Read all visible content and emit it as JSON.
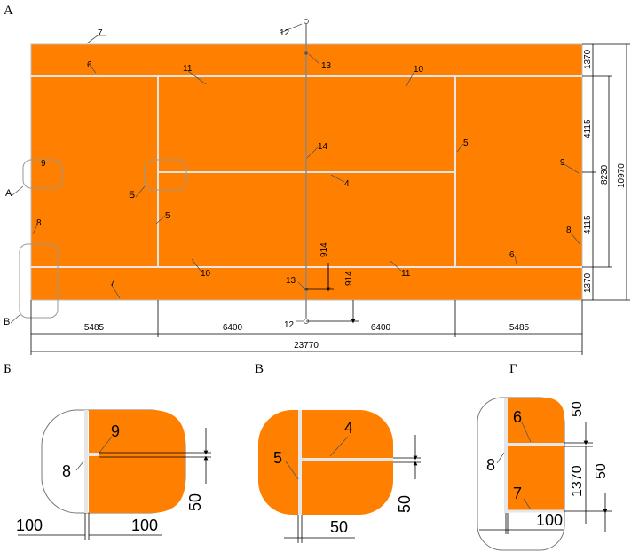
{
  "colors": {
    "court": "#ff8000",
    "lines": "#e6e6e6",
    "background": "#ffffff"
  },
  "main": {
    "view_label": "А",
    "dims": {
      "top_width": "23770",
      "seg_outer_left": "5485",
      "seg_inner_left": "6400",
      "seg_inner_right": "6400",
      "seg_outer_right": "5485",
      "total_height": "10970",
      "inner_height": "8230",
      "half_upper": "4115",
      "half_lower": "4115",
      "alley_top": "1370",
      "alley_bottom": "1370",
      "post_a": "914",
      "post_b": "914"
    },
    "labels": {
      "n4": "4",
      "n5a": "5",
      "n5b": "5",
      "n6a": "6",
      "n6b": "6",
      "n7a": "7",
      "n7b": "7",
      "n8a": "8",
      "n8b": "8",
      "n9a": "9",
      "n9b": "9",
      "n10a": "10",
      "n10b": "10",
      "n11a": "11",
      "n11b": "11",
      "n12a": "12",
      "n12b": "12",
      "n13a": "13",
      "n13b": "13",
      "n14": "14",
      "callout_a": "А",
      "callout_b": "Б",
      "callout_v": "В"
    }
  },
  "detail_b": {
    "title": "Б",
    "label_8": "8",
    "label_9": "9",
    "dim_left": "100",
    "dim_right": "100",
    "dim_v": "50"
  },
  "detail_v": {
    "title": "В",
    "label_4": "4",
    "label_5": "5",
    "dim_h": "50",
    "dim_v": "50"
  },
  "detail_g": {
    "title": "Г",
    "label_6": "6",
    "label_7": "7",
    "label_8": "8",
    "dim_top": "50",
    "dim_mid": "1370",
    "dim_lower": "50",
    "dim_h": "100"
  }
}
